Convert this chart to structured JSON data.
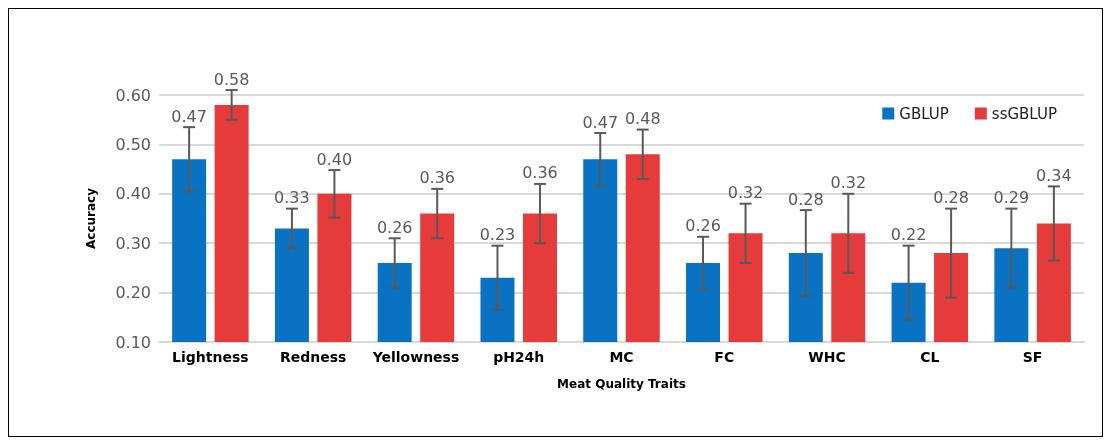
{
  "chart_data": {
    "type": "bar",
    "xlabel": "Meat Quality Traits",
    "ylabel": "Accuracy",
    "categories": [
      "Lightness",
      "Redness",
      "Yellowness",
      "pH24h",
      "MC",
      "FC",
      "WHC",
      "CL",
      "SF"
    ],
    "series": [
      {
        "name": "GBLUP",
        "color": "#0a72c2",
        "values": [
          0.47,
          0.33,
          0.26,
          0.23,
          0.47,
          0.26,
          0.28,
          0.22,
          0.29
        ],
        "errors": [
          0.065,
          0.04,
          0.05,
          0.065,
          0.053,
          0.053,
          0.087,
          0.075,
          0.08
        ],
        "value_labels": [
          "0.47",
          "0.33",
          "0.26",
          "0.23",
          "0.47",
          "0.26",
          "0.28",
          "0.22",
          "0.29"
        ]
      },
      {
        "name": "ssGBLUP",
        "color": "#e53b3b",
        "values": [
          0.58,
          0.4,
          0.36,
          0.36,
          0.48,
          0.32,
          0.32,
          0.28,
          0.34
        ],
        "errors": [
          0.03,
          0.048,
          0.05,
          0.06,
          0.05,
          0.06,
          0.08,
          0.09,
          0.075
        ],
        "value_labels": [
          "0.58",
          "0.40",
          "0.36",
          "0.36",
          "0.48",
          "0.32",
          "0.32",
          "0.28",
          "0.34"
        ]
      }
    ],
    "ylim": [
      0.1,
      0.6
    ],
    "yticks": [
      {
        "value": 0.1,
        "label": "0.10"
      },
      {
        "value": 0.2,
        "label": "0.20"
      },
      {
        "value": 0.3,
        "label": "0.30"
      },
      {
        "value": 0.4,
        "label": "0.40"
      },
      {
        "value": 0.5,
        "label": "0.50"
      },
      {
        "value": 0.6,
        "label": "0.60"
      }
    ],
    "grid": "y",
    "legend": "top right"
  }
}
